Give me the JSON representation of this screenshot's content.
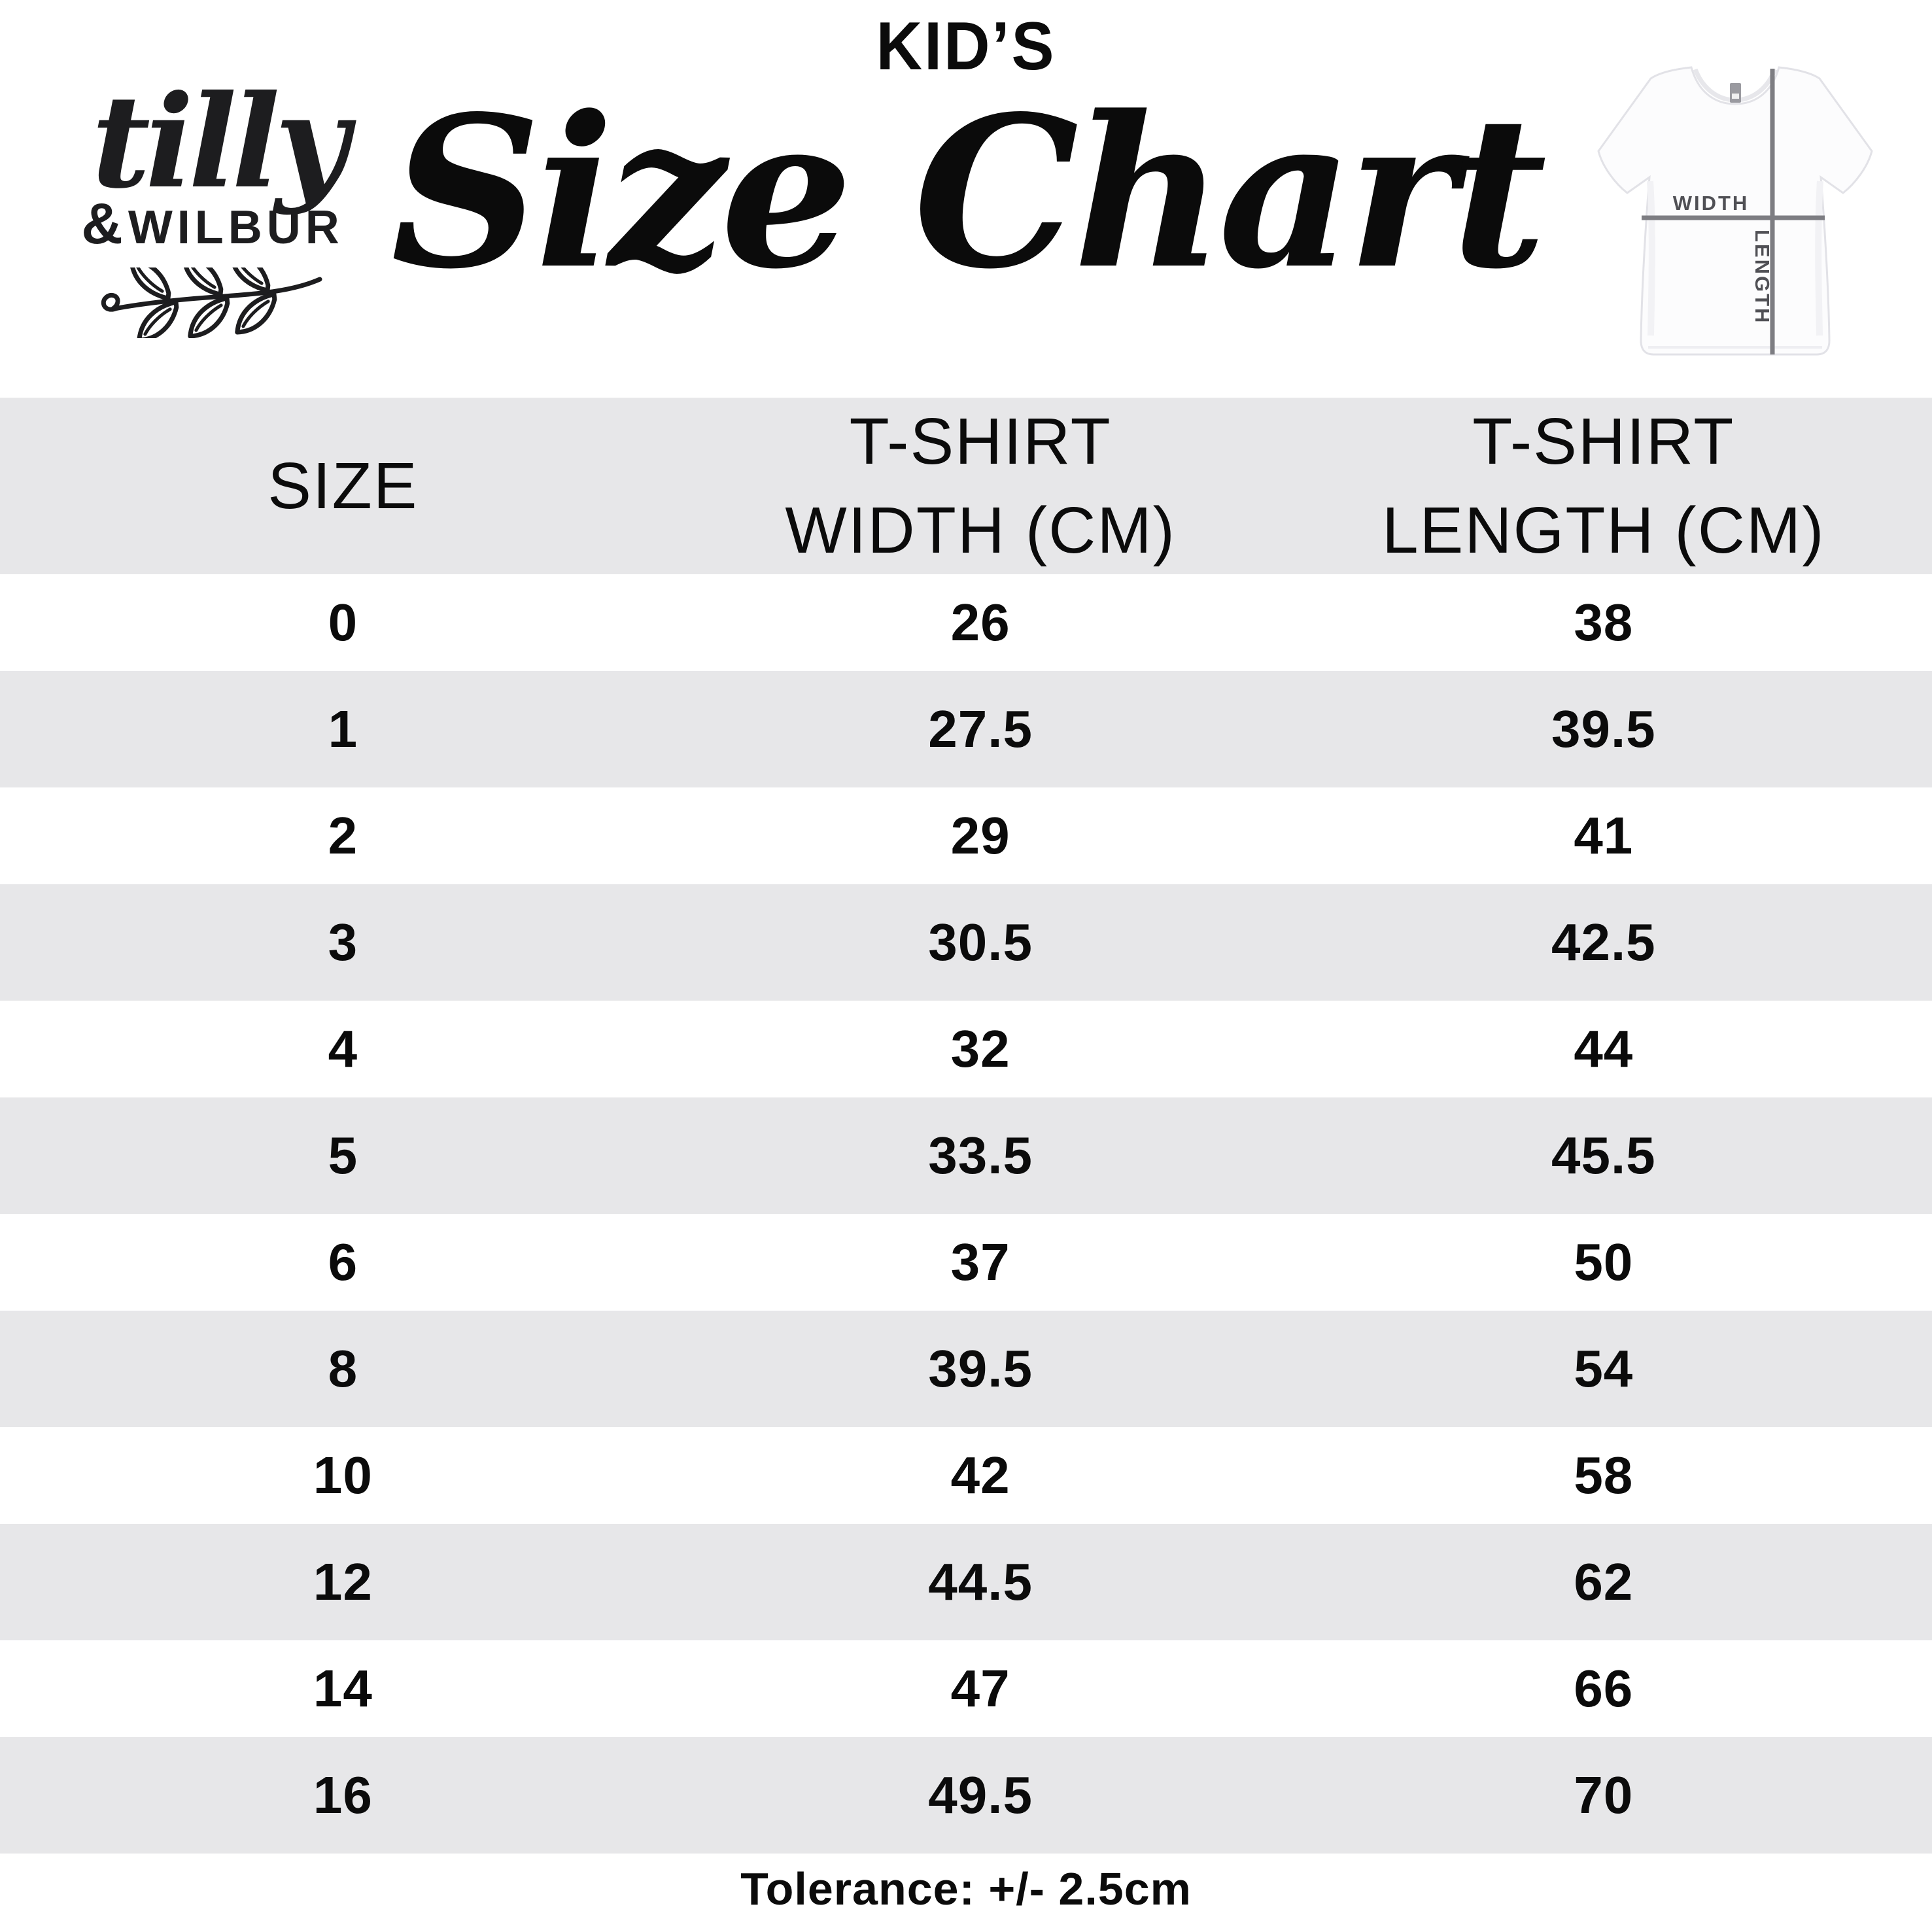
{
  "brand": {
    "script_name": "tilly",
    "ampersand": "&",
    "caps_name": "WILBUR"
  },
  "title": {
    "kicker": "KID’S",
    "main": "Size Chart"
  },
  "figure": {
    "width_label": "WIDTH",
    "length_label": "LENGTH"
  },
  "table": {
    "columns": [
      {
        "label": "SIZE",
        "lines": [
          "SIZE",
          ""
        ]
      },
      {
        "label": "T-SHIRT WIDTH (CM)",
        "lines": [
          "T-SHIRT",
          "WIDTH (CM)"
        ]
      },
      {
        "label": "T-SHIRT LENGTH (CM)",
        "lines": [
          "T-SHIRT",
          "LENGTH (CM)"
        ]
      }
    ]
  },
  "chart_data": {
    "type": "table",
    "title": "KID’S Size Chart",
    "columns": [
      "SIZE",
      "T-SHIRT WIDTH (CM)",
      "T-SHIRT LENGTH (CM)"
    ],
    "sizes": [
      "0",
      "1",
      "2",
      "3",
      "4",
      "5",
      "6",
      "8",
      "10",
      "12",
      "14",
      "16"
    ],
    "series": [
      {
        "name": "T-SHIRT WIDTH (CM)",
        "values": [
          26,
          27.5,
          29,
          30.5,
          32,
          33.5,
          37,
          39.5,
          42,
          44.5,
          47,
          49.5
        ]
      },
      {
        "name": "T-SHIRT LENGTH (CM)",
        "values": [
          38,
          39.5,
          41,
          42.5,
          44,
          45.5,
          50,
          54,
          58,
          62,
          66,
          70
        ]
      }
    ],
    "note": "Tolerance: +/- 2.5cm"
  },
  "footer": {
    "note": "Tolerance: +/- 2.5cm"
  },
  "colors": {
    "page_bg": "#ffffff",
    "band_gray": "#e7e7e9",
    "text": "#0b0b0b",
    "ink": "#1d1d1f",
    "figure_line": "#7d7d82",
    "figure_label": "#505055"
  }
}
